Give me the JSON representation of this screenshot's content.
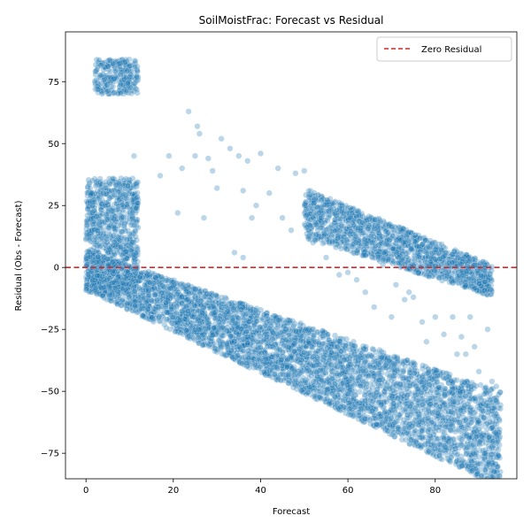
{
  "chart_data": {
    "type": "scatter",
    "title": "SoilMoistFrac: Forecast vs Residual",
    "xlabel": "Forecast",
    "ylabel": "Residual (Obs - Forecast)",
    "xlim": [
      -4.7,
      98.7
    ],
    "ylim": [
      -85.3,
      95.1
    ],
    "xticks": [
      0,
      20,
      40,
      60,
      80
    ],
    "yticks": [
      -75,
      -50,
      -25,
      0,
      25,
      50,
      75
    ],
    "grid": false,
    "legend": {
      "position": "top-right",
      "entries": [
        "Zero Residual"
      ]
    },
    "reference_line": {
      "y": 0,
      "style": "dashed",
      "color": "#d62728",
      "name": "Zero Residual"
    },
    "point_color": "#1f77b4",
    "point_alpha": 0.3,
    "clusters": [
      {
        "x": [
          2,
          12
        ],
        "y": [
          70,
          84
        ],
        "note": ""
      },
      {
        "x": [
          0,
          12
        ],
        "y": [
          -10,
          36
        ]
      },
      {
        "x": [
          50,
          93
        ],
        "y": [
          -15,
          32
        ]
      }
    ],
    "bands": [
      {
        "x": [
          0,
          95
        ],
        "slope": -0.72,
        "offset": [
          -20,
          5
        ]
      }
    ],
    "sample_points": [
      [
        23.5,
        63
      ],
      [
        25.5,
        57
      ],
      [
        26,
        54
      ],
      [
        31,
        52
      ],
      [
        19,
        45
      ],
      [
        25,
        45
      ],
      [
        28,
        44
      ],
      [
        33,
        48
      ],
      [
        35,
        45
      ],
      [
        37,
        43
      ],
      [
        40,
        46
      ],
      [
        11,
        45
      ],
      [
        17,
        37
      ],
      [
        22,
        40
      ],
      [
        29,
        39
      ],
      [
        44,
        40
      ],
      [
        48,
        38
      ],
      [
        50,
        39
      ],
      [
        30,
        32
      ],
      [
        36,
        31
      ],
      [
        42,
        30
      ],
      [
        39,
        25
      ],
      [
        38,
        20
      ],
      [
        27,
        20
      ],
      [
        21,
        22
      ],
      [
        45,
        20
      ],
      [
        47,
        15
      ],
      [
        34,
        6
      ],
      [
        36,
        4
      ],
      [
        52,
        10
      ],
      [
        55,
        4
      ],
      [
        58,
        -3
      ],
      [
        62,
        -5
      ],
      [
        64,
        -10
      ],
      [
        66,
        -16
      ],
      [
        70,
        -20
      ],
      [
        73,
        -13
      ],
      [
        75,
        -12
      ],
      [
        77,
        -22
      ],
      [
        78,
        -30
      ],
      [
        82,
        -27
      ],
      [
        84,
        -20
      ],
      [
        86,
        -28
      ],
      [
        87,
        -35
      ],
      [
        89,
        -32
      ],
      [
        92,
        -25
      ],
      [
        93,
        -46
      ],
      [
        94,
        -48
      ],
      [
        88,
        -20
      ],
      [
        80,
        -20
      ],
      [
        85,
        -35
      ],
      [
        90,
        -42
      ],
      [
        91,
        -55
      ],
      [
        93,
        -58
      ],
      [
        94,
        -62
      ],
      [
        74,
        -10
      ],
      [
        71,
        -7
      ],
      [
        68,
        1
      ],
      [
        60,
        -2
      ]
    ]
  }
}
